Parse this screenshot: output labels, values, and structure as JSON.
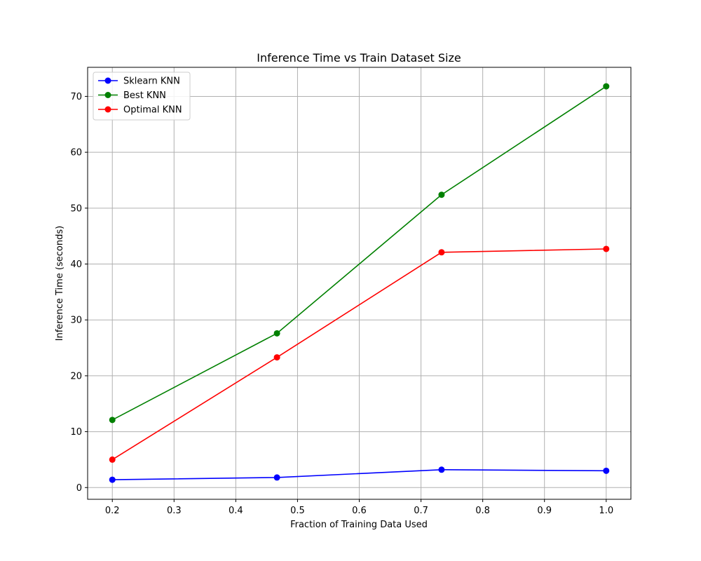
{
  "chart_data": {
    "type": "line",
    "title": "Inference Time vs Train Dataset Size",
    "xlabel": "Fraction of Training Data Used",
    "ylabel": "Inference Time (seconds)",
    "x": [
      0.2,
      0.4667,
      0.7333,
      1.0
    ],
    "xlim": [
      0.16,
      1.04
    ],
    "ylim": [
      -2.1,
      75.2
    ],
    "xticks": [
      0.2,
      0.3,
      0.4,
      0.5,
      0.6,
      0.7,
      0.8,
      0.9,
      1.0
    ],
    "xtick_labels": [
      "0.2",
      "0.3",
      "0.4",
      "0.5",
      "0.6",
      "0.7",
      "0.8",
      "0.9",
      "1.0"
    ],
    "yticks": [
      0,
      10,
      20,
      30,
      40,
      50,
      60,
      70
    ],
    "ytick_labels": [
      "0",
      "10",
      "20",
      "30",
      "40",
      "50",
      "60",
      "70"
    ],
    "grid": true,
    "legend_position": "top-left",
    "series": [
      {
        "name": "Sklearn KNN",
        "color": "#0000ff",
        "values": [
          1.4,
          1.8,
          3.2,
          3.0
        ]
      },
      {
        "name": "Best KNN",
        "color": "#008000",
        "values": [
          12.1,
          27.6,
          52.4,
          71.8
        ]
      },
      {
        "name": "Optimal KNN",
        "color": "#ff0000",
        "values": [
          5.0,
          23.3,
          42.1,
          42.7
        ]
      }
    ]
  }
}
